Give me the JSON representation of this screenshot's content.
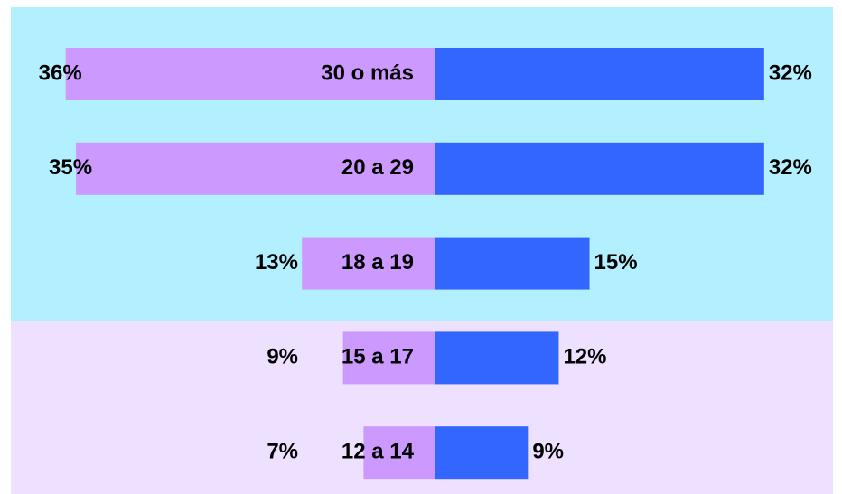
{
  "chart_data": {
    "type": "butterfly",
    "categories": [
      "30 o más",
      "20 a 29",
      "18 a 19",
      "15 a 17",
      "12 a 14"
    ],
    "series": [
      {
        "color": "#cc99ff",
        "values": [
          36,
          35,
          13,
          9,
          7
        ],
        "value_labels": [
          "36%",
          "35%",
          "13%",
          "9%",
          "7%"
        ]
      },
      {
        "color": "#3366ff",
        "values": [
          32,
          32,
          15,
          12,
          9
        ],
        "value_labels": [
          "32%",
          "32%",
          "15%",
          "12%",
          "9%"
        ]
      }
    ]
  }
}
